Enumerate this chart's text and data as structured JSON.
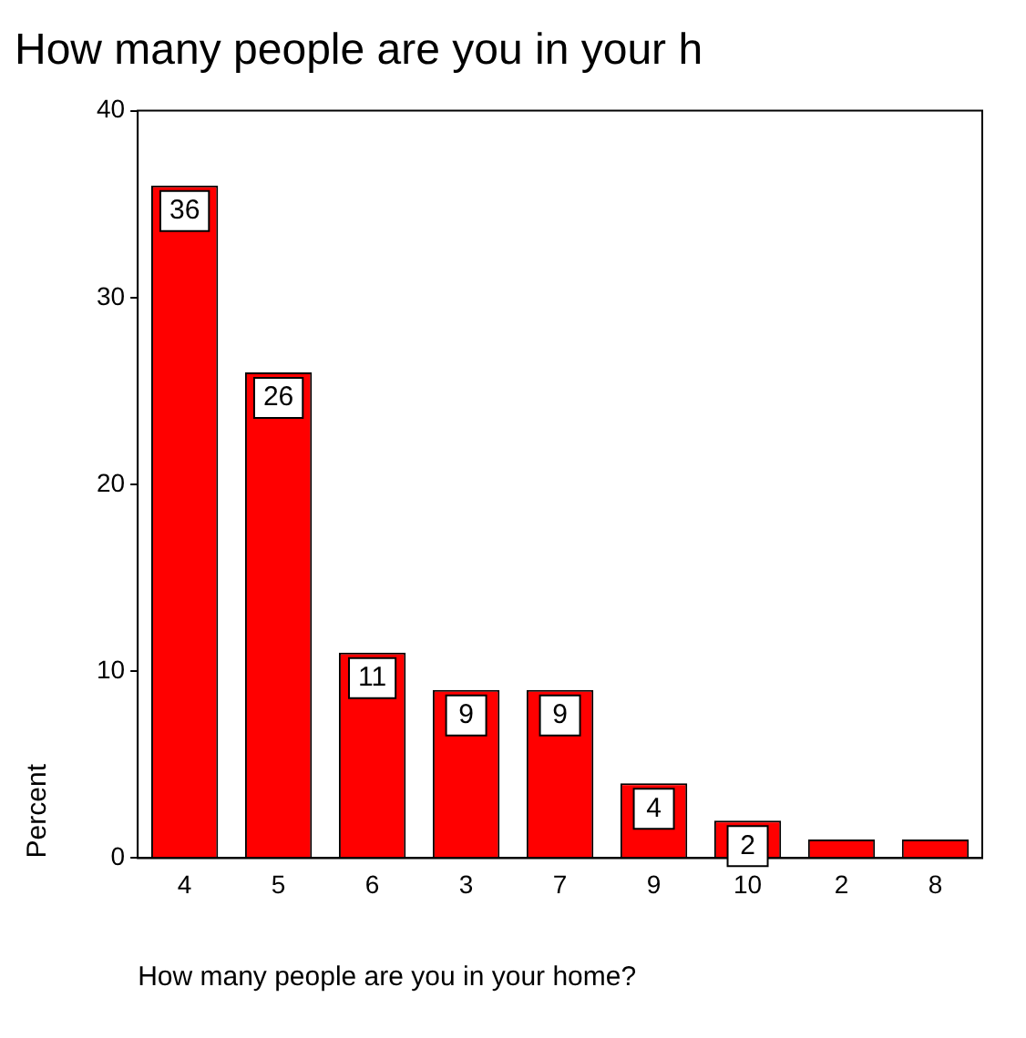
{
  "chart_data": {
    "type": "bar",
    "title": "How many people are you in your h",
    "xlabel": "How many people are you in your home?",
    "ylabel": "Percent",
    "categories": [
      "4",
      "5",
      "6",
      "3",
      "7",
      "9",
      "10",
      "2",
      "8"
    ],
    "values": [
      36,
      26,
      11,
      9,
      9,
      4,
      2,
      1,
      1
    ],
    "value_labels": [
      "36",
      "26",
      "11",
      "9",
      "9",
      "4",
      "2",
      null,
      null
    ],
    "color": "#ff0000",
    "ylim": [
      0,
      40
    ],
    "yticks": [
      0,
      10,
      20,
      30,
      40
    ],
    "grid": false,
    "legend": false
  }
}
